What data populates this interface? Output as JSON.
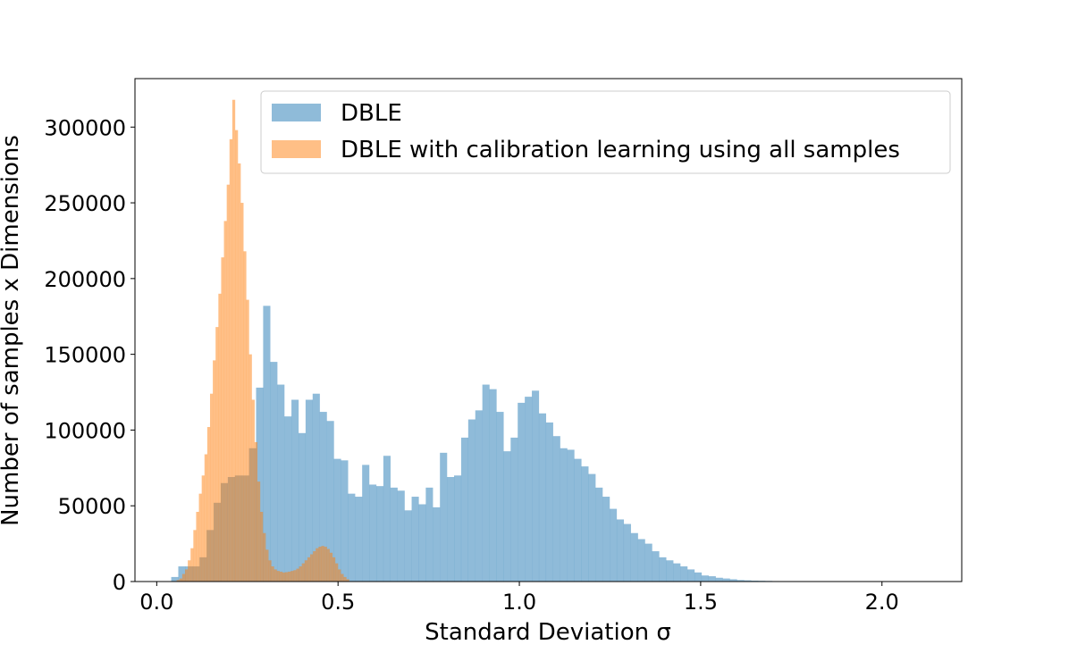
{
  "chart_data": {
    "type": "histogram",
    "xlabel": "Standard Deviation σ",
    "ylabel": "Number of samples x Dimensions",
    "xlim": [
      -0.06,
      2.22
    ],
    "ylim": [
      0,
      332000
    ],
    "xticks": [
      0.0,
      0.5,
      1.0,
      1.5,
      2.0
    ],
    "xtick_labels": [
      "0.0",
      "0.5",
      "1.0",
      "1.5",
      "2.0"
    ],
    "yticks": [
      0,
      50000,
      100000,
      150000,
      200000,
      250000,
      300000
    ],
    "ytick_labels": [
      "0",
      "50000",
      "100000",
      "150000",
      "200000",
      "250000",
      "300000"
    ],
    "legend_placement": "upper right",
    "series": [
      {
        "name": "DBLE",
        "color": "#1f77b4",
        "alpha": 0.5,
        "bin_start": 0.04,
        "bin_width": 0.0195,
        "values": [
          3000,
          10000,
          10000,
          10000,
          16000,
          34000,
          52000,
          65000,
          69000,
          70000,
          70000,
          88000,
          128000,
          182000,
          145000,
          130000,
          109000,
          120000,
          98000,
          120000,
          124000,
          112000,
          106000,
          81000,
          80000,
          58000,
          56000,
          77000,
          64000,
          63000,
          83000,
          62000,
          60000,
          47000,
          56000,
          51000,
          62000,
          49000,
          85000,
          69000,
          70000,
          95000,
          107000,
          113000,
          130000,
          127000,
          112000,
          86000,
          95000,
          118000,
          122000,
          126000,
          111000,
          105000,
          96000,
          88000,
          87000,
          81000,
          76000,
          71000,
          62000,
          56000,
          48000,
          41000,
          38000,
          32000,
          28000,
          25000,
          20000,
          16000,
          14000,
          12000,
          10000,
          8000,
          6000,
          4000,
          3500,
          2500,
          2000,
          1500,
          1000,
          800,
          600,
          500,
          400,
          300,
          200,
          150,
          100,
          80,
          60,
          40,
          20,
          10
        ]
      },
      {
        "name": "DBLE with calibration learning using all samples",
        "color": "#ff7f0e",
        "alpha": 0.5,
        "bin_start": 0.055,
        "bin_width": 0.00767,
        "values": [
          1000,
          2000,
          5000,
          8000,
          14000,
          22000,
          34000,
          46000,
          58000,
          70000,
          84000,
          102000,
          124000,
          146000,
          168000,
          190000,
          214000,
          238000,
          262000,
          292000,
          318000,
          298000,
          276000,
          250000,
          218000,
          186000,
          150000,
          120000,
          92000,
          66000,
          46000,
          32000,
          21000,
          14000,
          10000,
          8000,
          7000,
          6500,
          6000,
          6200,
          6500,
          7000,
          7500,
          8500,
          10000,
          12000,
          14000,
          16000,
          18000,
          20000,
          22000,
          23000,
          23500,
          23000,
          21500,
          19000,
          16000,
          12000,
          8000,
          5000,
          3000,
          1500
        ]
      }
    ]
  }
}
